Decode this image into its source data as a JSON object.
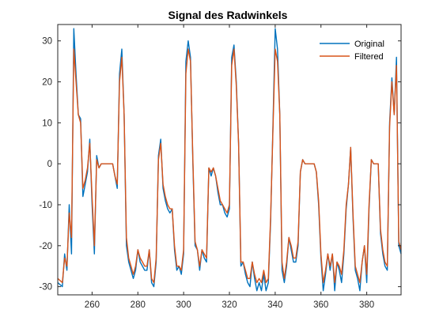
{
  "chart_data": {
    "type": "line",
    "title": "Signal des Radwinkels",
    "xlabel": "",
    "ylabel": "",
    "xlim": [
      245,
      395
    ],
    "ylim": [
      -32,
      34
    ],
    "x_ticks": [
      260,
      280,
      300,
      320,
      340,
      360,
      380
    ],
    "y_ticks": [
      -30,
      -20,
      -10,
      0,
      10,
      20,
      30
    ],
    "grid": false,
    "legend_position": "top-right",
    "series": [
      {
        "name": "Original",
        "color": "#0072BD",
        "x": [
          245,
          247,
          248,
          249,
          250,
          251,
          252,
          253,
          254,
          255,
          256,
          257,
          258,
          259,
          260,
          261,
          262,
          263,
          264,
          265,
          266,
          267,
          268,
          269,
          270,
          271,
          272,
          273,
          274,
          275,
          276,
          277,
          278,
          279,
          280,
          281,
          282,
          283,
          284,
          285,
          286,
          287,
          288,
          289,
          290,
          291,
          292,
          293,
          294,
          295,
          296,
          297,
          298,
          299,
          300,
          301,
          302,
          303,
          304,
          305,
          306,
          307,
          308,
          309,
          310,
          311,
          312,
          313,
          314,
          315,
          316,
          317,
          318,
          319,
          320,
          321,
          322,
          323,
          324,
          325,
          326,
          327,
          328,
          329,
          330,
          331,
          332,
          333,
          334,
          335,
          336,
          337,
          338,
          339,
          340,
          341,
          342,
          343,
          344,
          345,
          346,
          347,
          348,
          349,
          350,
          351,
          352,
          353,
          354,
          355,
          356,
          357,
          358,
          359,
          360,
          361,
          362,
          363,
          364,
          365,
          366,
          367,
          368,
          369,
          370,
          371,
          372,
          373,
          374,
          375,
          376,
          377,
          378,
          379,
          380,
          381,
          382,
          383,
          384,
          385,
          386,
          387,
          388,
          389,
          390,
          391,
          392,
          393,
          394,
          395
        ],
        "y": [
          -29,
          -30,
          -22,
          -26,
          -10,
          -22,
          33,
          22,
          12,
          11,
          -8,
          -5,
          -2,
          6,
          -10,
          -22,
          2,
          -1,
          0,
          0,
          0,
          0,
          0,
          0,
          -3,
          -6,
          22,
          28,
          12,
          -20,
          -24,
          -26,
          -28,
          -26,
          -21,
          -24,
          -25,
          -26,
          -26,
          -21,
          -29,
          -30,
          -24,
          2,
          6,
          -6,
          -9,
          -11,
          -12,
          -11,
          -21,
          -26,
          -25,
          -27,
          -22,
          25,
          30,
          26,
          1,
          -20,
          -21,
          -26,
          -21,
          -23,
          -24,
          -1,
          -3,
          -1,
          -3,
          -7,
          -10,
          -10,
          -12,
          -13,
          -11,
          26,
          29,
          20,
          5,
          -25,
          -24,
          -27,
          -29,
          -30,
          -24,
          -28,
          -31,
          -29,
          -31,
          -27,
          -31,
          -29,
          -14,
          9,
          33,
          28,
          12,
          -26,
          -29,
          -25,
          -18,
          -21,
          -24,
          -24,
          -20,
          -2,
          1,
          0,
          0,
          0,
          0,
          0,
          -2,
          -10,
          -23,
          -31,
          -27,
          -22,
          -26,
          -22,
          -31,
          -24,
          -26,
          -29,
          -22,
          -11,
          -5,
          4,
          -13,
          -26,
          -28,
          -31,
          -24,
          -20,
          -29,
          -11,
          1,
          0,
          0,
          0,
          -17,
          -22,
          -25,
          -26,
          10,
          21,
          12,
          26,
          -20,
          -22
        ]
      },
      {
        "name": "Filtered",
        "color": "#D95319",
        "x": [
          245,
          247,
          248,
          249,
          250,
          251,
          252,
          253,
          254,
          255,
          256,
          257,
          258,
          259,
          260,
          261,
          262,
          263,
          264,
          265,
          266,
          267,
          268,
          269,
          270,
          271,
          272,
          273,
          274,
          275,
          276,
          277,
          278,
          279,
          280,
          281,
          282,
          283,
          284,
          285,
          286,
          287,
          288,
          289,
          290,
          291,
          292,
          293,
          294,
          295,
          296,
          297,
          298,
          299,
          300,
          301,
          302,
          303,
          304,
          305,
          306,
          307,
          308,
          309,
          310,
          311,
          312,
          313,
          314,
          315,
          316,
          317,
          318,
          319,
          320,
          321,
          322,
          323,
          324,
          325,
          326,
          327,
          328,
          329,
          330,
          331,
          332,
          333,
          334,
          335,
          336,
          337,
          338,
          339,
          340,
          341,
          342,
          343,
          344,
          345,
          346,
          347,
          348,
          349,
          350,
          351,
          352,
          353,
          354,
          355,
          356,
          357,
          358,
          359,
          360,
          361,
          362,
          363,
          364,
          365,
          366,
          367,
          368,
          369,
          370,
          371,
          372,
          373,
          374,
          375,
          376,
          377,
          378,
          379,
          380,
          381,
          382,
          383,
          384,
          385,
          386,
          387,
          388,
          389,
          390,
          391,
          392,
          393,
          394,
          395
        ],
        "y": [
          -28,
          -29,
          -23,
          -25,
          -12,
          -18,
          28,
          20,
          12,
          10,
          -6,
          -4,
          -1,
          5,
          -8,
          -20,
          1,
          -1,
          0,
          0,
          0,
          0,
          0,
          0,
          -3,
          -5,
          20,
          26,
          12,
          -18,
          -23,
          -25,
          -27,
          -25,
          -21,
          -23,
          -24,
          -25,
          -25,
          -21,
          -28,
          -29,
          -23,
          1,
          5,
          -5,
          -8,
          -10,
          -11,
          -11,
          -20,
          -25,
          -25,
          -26,
          -21,
          22,
          28,
          25,
          2,
          -19,
          -21,
          -25,
          -21,
          -22,
          -23,
          -1,
          -2,
          -1,
          -3,
          -6,
          -9,
          -10,
          -11,
          -12,
          -10,
          24,
          28,
          19,
          5,
          -24,
          -24,
          -26,
          -28,
          -28,
          -24,
          -27,
          -29,
          -28,
          -29,
          -26,
          -29,
          -28,
          -13,
          8,
          28,
          25,
          12,
          -24,
          -28,
          -24,
          -18,
          -20,
          -23,
          -23,
          -19,
          -2,
          1,
          0,
          0,
          0,
          0,
          0,
          -2,
          -9,
          -22,
          -29,
          -26,
          -22,
          -25,
          -22,
          -29,
          -24,
          -25,
          -27,
          -21,
          -10,
          -5,
          4,
          -12,
          -25,
          -27,
          -29,
          -24,
          -20,
          -27,
          -10,
          1,
          0,
          0,
          0,
          -16,
          -21,
          -24,
          -25,
          9,
          20,
          12,
          24,
          -19,
          -21
        ]
      }
    ]
  }
}
